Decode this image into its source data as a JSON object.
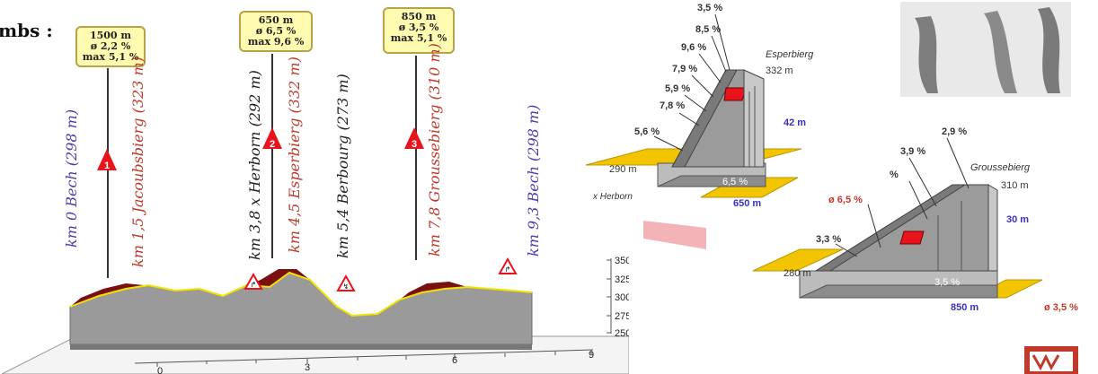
{
  "header": {
    "title": "mbs :"
  },
  "climbs": [
    {
      "number": "1",
      "length": "1500 m",
      "avg": "ø 2,2 %",
      "max": "max 5,1 %"
    },
    {
      "number": "2",
      "length": "650 m",
      "avg": "ø 6,5 %",
      "max": "max 9,6 %"
    },
    {
      "number": "3",
      "length": "850 m",
      "avg": "ø 3,5 %",
      "max": "max 5,1 %"
    }
  ],
  "markers": {
    "start": "km 0 Bech (298 m)",
    "jacoubsbierg": "km 1,5 Jacoubsbierg (323 m)",
    "herborn": "km 3,8 x Herborn (292 m)",
    "esperbierg": "km 4,5 Esperbierg (332 m)",
    "berbourg": "km 5,4 Berbourg (273 m)",
    "groussebierg": "km 7,8 Groussebierg (310 m)",
    "finish": "km 9,3 Bech (298 m)"
  },
  "profile_axis": {
    "y_ticks": [
      "350",
      "325",
      "300",
      "275",
      "250"
    ],
    "x_ticks": [
      "0",
      "3",
      "6",
      "9"
    ]
  },
  "detail_esperbierg": {
    "name": "Esperbierg",
    "top_elev": "332 m",
    "gain": "42 m",
    "base_elev": "290 m",
    "from": "x Herborn",
    "length": "650 m",
    "avg": "6,5 %",
    "gradients": [
      "3,5 %",
      "8,5 %",
      "9,6 %",
      "7,9 %",
      "5,9 %",
      "7,8 %",
      "5,6 %"
    ]
  },
  "detail_groussebierg": {
    "name": "Groussebierg",
    "top_elev": "310 m",
    "gain": "30 m",
    "base_elev": "280 m",
    "length": "850 m",
    "avg_label": "ø 3,5 %",
    "avg": "3,5 %",
    "prev_avg": "ø 6,5 %",
    "gradients": [
      "2,9 %",
      "3,9 %",
      "%",
      "3,3 %"
    ]
  },
  "colors": {
    "climb_red": "#e8141b",
    "road_yellow": "#f2c500",
    "slope_grey": "#9b9b9b",
    "peak_brown": "#7a1010",
    "label_blue": "#4b3fb0"
  }
}
